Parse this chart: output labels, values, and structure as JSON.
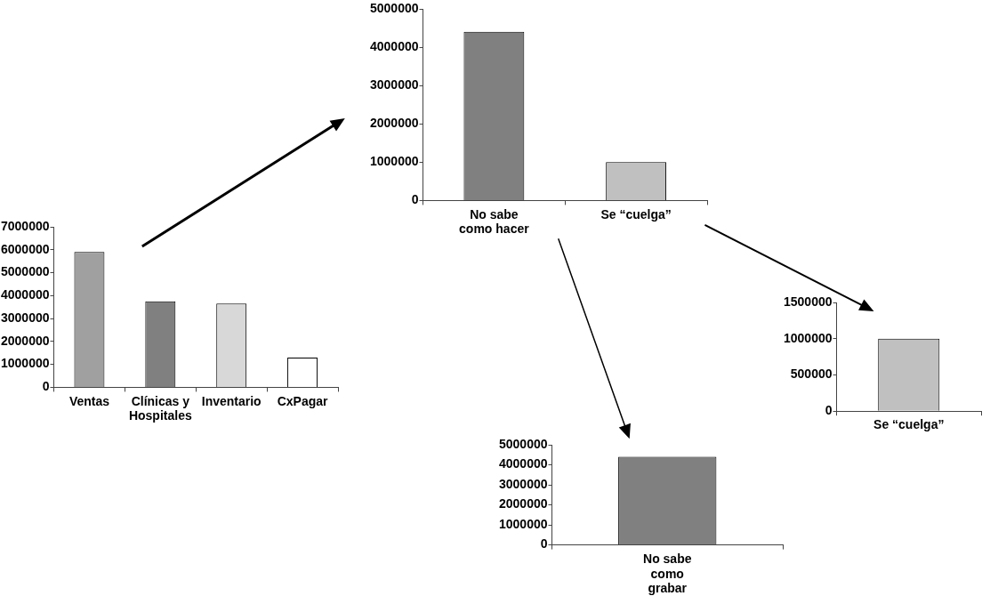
{
  "chart_data": [
    {
      "type": "bar",
      "categories": [
        "Ventas",
        "Clínicas y Hospitales",
        "Inventario",
        "CxPagar"
      ],
      "values": [
        5900000,
        3750000,
        3650000,
        1300000
      ],
      "colors": [
        "#a0a0a0",
        "#808080",
        "#d8d8d8",
        "#ffffff"
      ],
      "ylim": [
        0,
        7000000
      ],
      "yticks": [
        0,
        1000000,
        2000000,
        3000000,
        4000000,
        5000000,
        6000000,
        7000000
      ],
      "grid": false
    },
    {
      "type": "bar",
      "categories": [
        "No sabe como hacer",
        "Se “cuelga”"
      ],
      "values": [
        4400000,
        1000000
      ],
      "colors": [
        "#808080",
        "#c0c0c0"
      ],
      "ylim": [
        0,
        5000000
      ],
      "yticks": [
        0,
        1000000,
        2000000,
        3000000,
        4000000,
        5000000
      ],
      "grid": false
    },
    {
      "type": "bar",
      "categories": [
        "Se “cuelga”"
      ],
      "values": [
        1000000
      ],
      "colors": [
        "#c0c0c0"
      ],
      "ylim": [
        0,
        1500000
      ],
      "yticks": [
        0,
        500000,
        1000000,
        1500000
      ],
      "grid": false
    },
    {
      "type": "bar",
      "categories": [
        "No sabe como grabar"
      ],
      "values": [
        4400000
      ],
      "colors": [
        "#808080"
      ],
      "ylim": [
        0,
        5000000
      ],
      "yticks": [
        0,
        1000000,
        2000000,
        3000000,
        4000000,
        5000000
      ],
      "grid": false
    }
  ]
}
